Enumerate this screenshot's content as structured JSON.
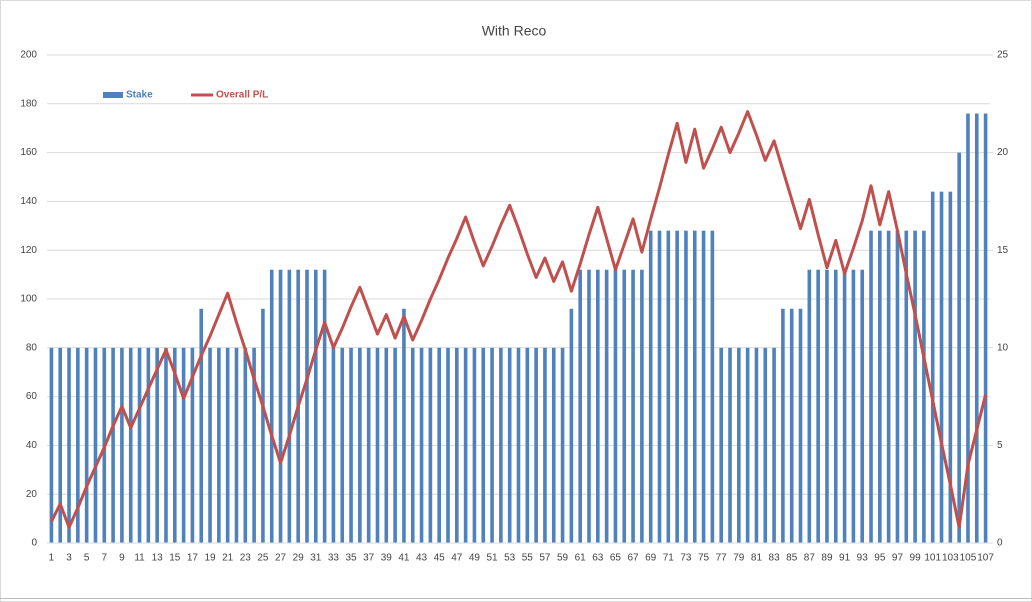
{
  "chart_data": {
    "type": "bar_line",
    "title": "With Reco",
    "categories": [
      1,
      null,
      3,
      null,
      5,
      null,
      7,
      null,
      9,
      null,
      11,
      null,
      13,
      null,
      15,
      null,
      17,
      null,
      19,
      null,
      21,
      null,
      23,
      null,
      25,
      null,
      27,
      null,
      29,
      null,
      31,
      null,
      33,
      null,
      35,
      null,
      37,
      null,
      39,
      null,
      41,
      null,
      43,
      null,
      45,
      null,
      47,
      null,
      49,
      null,
      51,
      null,
      53,
      null,
      55,
      null,
      57,
      null,
      59,
      null,
      61,
      null,
      63,
      null,
      65,
      null,
      67,
      null,
      69,
      null,
      71,
      null,
      73,
      null,
      75,
      null,
      77,
      null,
      79,
      null,
      81,
      null,
      83,
      null,
      85,
      null,
      87,
      null,
      89,
      null,
      91,
      null,
      93,
      null,
      95,
      null,
      97,
      null,
      99,
      null,
      101,
      null,
      103,
      null,
      105,
      null,
      107
    ],
    "series": [
      {
        "name": "Stake",
        "color": "#4f81bd",
        "type": "bar",
        "values": [
          80,
          80,
          80,
          80,
          80,
          80,
          80,
          80,
          80,
          80,
          80,
          80,
          80,
          80,
          80,
          80,
          80,
          96,
          80,
          80,
          80,
          80,
          80,
          80,
          96,
          112,
          112,
          112,
          112,
          112,
          112,
          112,
          80,
          80,
          80,
          80,
          80,
          80,
          80,
          80,
          96,
          80,
          80,
          80,
          80,
          80,
          80,
          80,
          80,
          80,
          80,
          80,
          80,
          80,
          80,
          80,
          80,
          80,
          80,
          96,
          112,
          112,
          112,
          112,
          112,
          112,
          112,
          112,
          128,
          128,
          128,
          128,
          128,
          128,
          128,
          128,
          80,
          80,
          80,
          80,
          80,
          80,
          80,
          96,
          96,
          96,
          112,
          112,
          112,
          112,
          112,
          112,
          112,
          128,
          128,
          128,
          128,
          128,
          128,
          128,
          144,
          144,
          144,
          160,
          176,
          176,
          176
        ]
      },
      {
        "name": "Overall P/L",
        "color": "#c0504d",
        "type": "line",
        "axis": "y2",
        "values": [
          1.1,
          2.0,
          0.8,
          1.8,
          2.9,
          3.9,
          4.9,
          6.0,
          7.0,
          5.9,
          6.9,
          7.9,
          8.9,
          9.9,
          8.7,
          7.4,
          8.5,
          9.6,
          10.6,
          11.7,
          12.8,
          11.3,
          9.9,
          8.4,
          7.0,
          5.5,
          4.1,
          5.5,
          7.0,
          8.4,
          9.9,
          11.3,
          10.0,
          11.0,
          12.1,
          13.1,
          11.9,
          10.7,
          11.7,
          10.5,
          11.6,
          10.4,
          11.4,
          12.5,
          13.5,
          14.6,
          15.6,
          16.7,
          15.4,
          14.2,
          15.2,
          16.3,
          17.3,
          16.1,
          14.8,
          13.6,
          14.6,
          13.4,
          14.4,
          12.9,
          14.3,
          15.8,
          17.2,
          15.6,
          14.0,
          15.3,
          16.6,
          14.9,
          16.6,
          18.2,
          19.9,
          21.5,
          19.5,
          21.2,
          19.2,
          20.2,
          21.3,
          20.0,
          21.0,
          22.1,
          20.9,
          19.6,
          20.6,
          19.1,
          17.6,
          16.1,
          17.6,
          15.8,
          14.1,
          15.5,
          13.8,
          15.1,
          16.5,
          18.3,
          16.3,
          18.0,
          16.0,
          13.8,
          11.7,
          9.5,
          7.3,
          5.1,
          3.0,
          0.8,
          4.0,
          5.8,
          7.6
        ]
      }
    ],
    "ylim": [
      0,
      200
    ],
    "yticks": [
      0,
      20,
      40,
      60,
      80,
      100,
      120,
      140,
      160,
      180,
      200
    ],
    "y2lim": [
      0,
      25
    ],
    "y2ticks": [
      0,
      5,
      10,
      15,
      20,
      25
    ],
    "grid": true,
    "legend": "top-left"
  }
}
